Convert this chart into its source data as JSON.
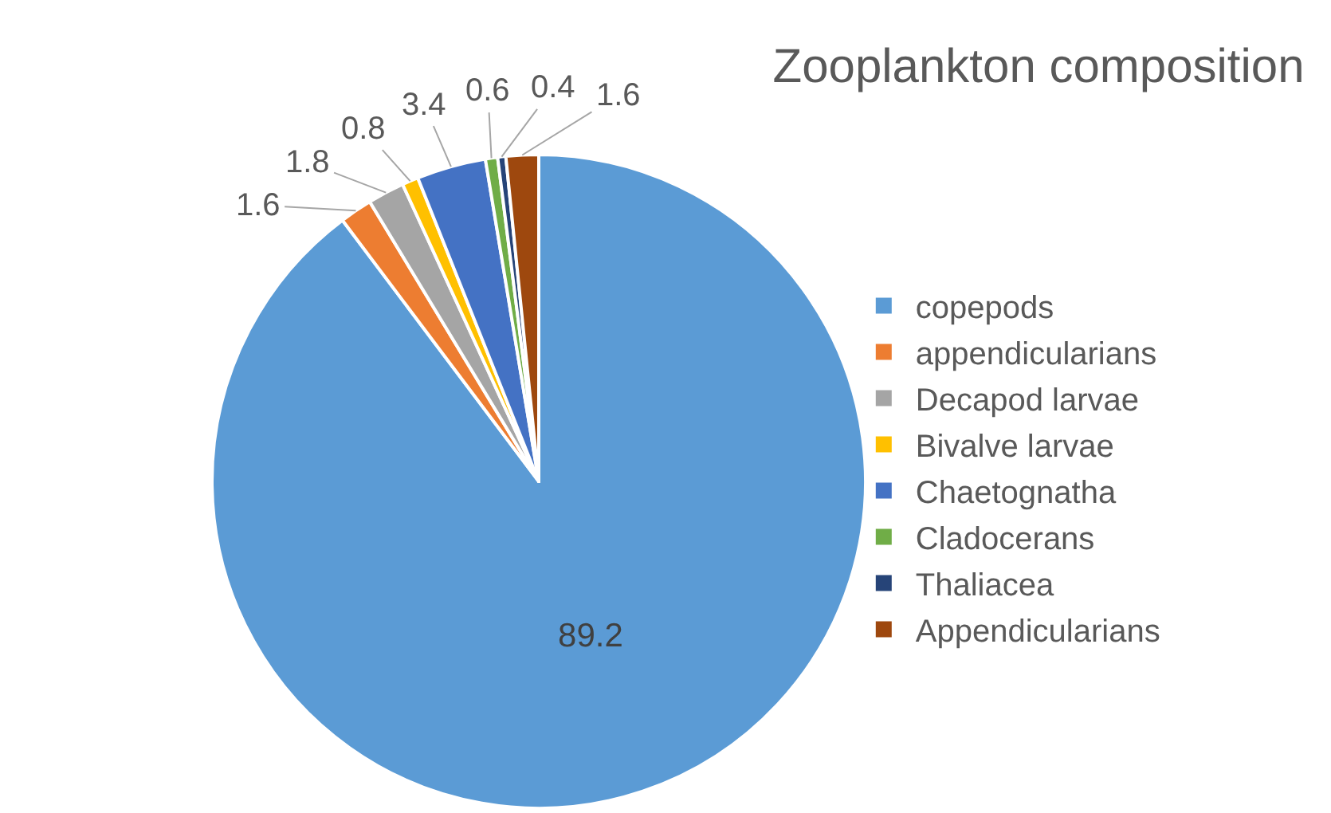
{
  "chart_data": {
    "type": "pie",
    "title": "Zooplankton composition",
    "categories": [
      "copepods",
      "appendicularians",
      "Decapod larvae",
      "Bivalve larvae",
      "Chaetognatha",
      "Cladocerans",
      "Thaliacea",
      "Appendicularians"
    ],
    "values": [
      89.2,
      1.6,
      1.8,
      0.8,
      3.4,
      0.6,
      0.4,
      1.6
    ],
    "colors": [
      "#5b9bd5",
      "#ed7d31",
      "#a5a5a5",
      "#ffc000",
      "#4472c4",
      "#70ad47",
      "#264478",
      "#9e480e"
    ],
    "data_labels": true,
    "legend": "right"
  }
}
